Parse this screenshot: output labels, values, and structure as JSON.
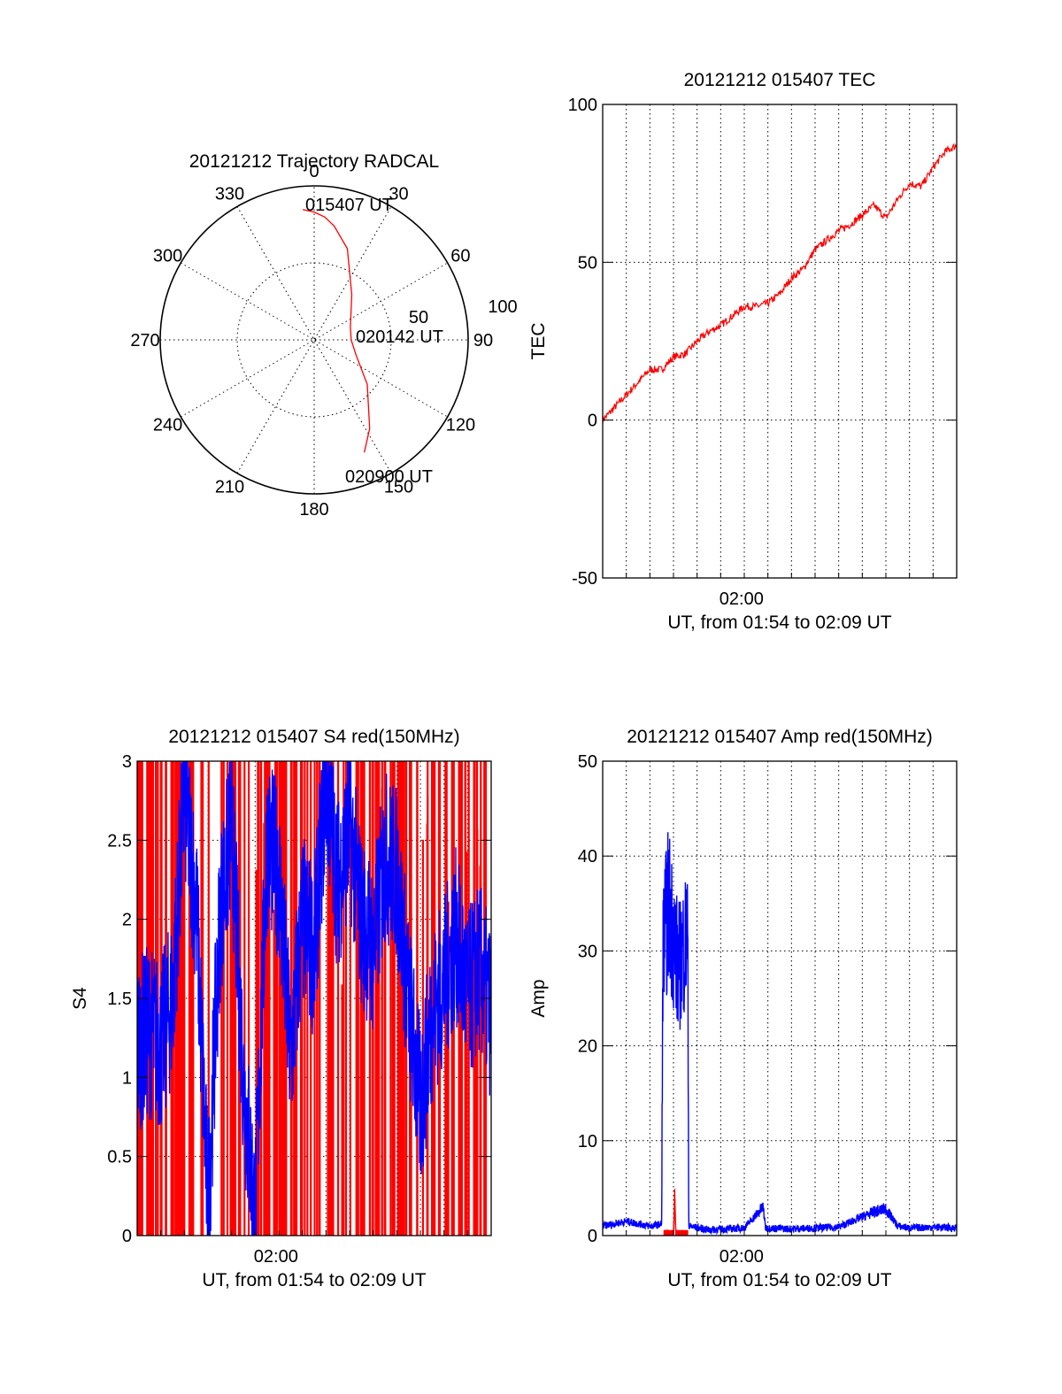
{
  "chart_data": [
    {
      "type": "polar",
      "title": "20121212 Trajectory RADCAL",
      "angle_labels": [
        "0",
        "30",
        "60",
        "90",
        "120",
        "150",
        "180",
        "210",
        "240",
        "270",
        "300",
        "330"
      ],
      "radial_tick_labels": [
        "50",
        "100"
      ],
      "rlim": [
        0,
        100
      ],
      "trajectory": {
        "color": "#ff0000",
        "azimuth_deg": [
          -5,
          0,
          5,
          10,
          20,
          40,
          70,
          90,
          110,
          130,
          148,
          156
        ],
        "radius": [
          85,
          83,
          80,
          75,
          63,
          38,
          25,
          24,
          29,
          45,
          68,
          80
        ]
      },
      "annotations": [
        "015407 UT",
        "020142 UT",
        "020900 UT"
      ],
      "grid": true
    },
    {
      "type": "line",
      "title": "20121212 015407 TEC",
      "ylabel": "TEC",
      "xlabel": "UT, from 01:54 to 02:09 UT",
      "x_tick_labels": [
        "02:00"
      ],
      "x_unit": "minutes since 01:54:07",
      "xlim": [
        0,
        15
      ],
      "ylim": [
        -50,
        100
      ],
      "y_ticks": [
        -50,
        0,
        50,
        100
      ],
      "grid": true,
      "series": [
        {
          "color": "#ff0000",
          "x": [
            0,
            0.5,
            1.0,
            1.5,
            2.0,
            2.5,
            3.0,
            3.5,
            4.0,
            4.5,
            5.0,
            5.5,
            6.0,
            6.5,
            7.0,
            7.5,
            8.0,
            8.5,
            9.0,
            9.5,
            10.0,
            10.5,
            11.0,
            11.5,
            12.0,
            12.5,
            13.0,
            13.5,
            14.0,
            14.5,
            15.0
          ],
          "y": [
            0,
            4,
            8,
            12,
            16,
            16,
            20,
            21,
            25,
            28,
            30,
            33,
            36,
            36,
            37,
            40,
            45,
            48,
            54,
            57,
            60,
            62,
            65,
            68,
            64,
            70,
            75,
            74,
            80,
            85,
            87
          ]
        }
      ]
    },
    {
      "type": "line",
      "title": "20121212 015407 S4 red(150MHz)",
      "ylabel": "S4",
      "xlabel": "UT, from 01:54 to 02:09 UT",
      "x_tick_labels": [
        "02:00"
      ],
      "x_unit": "minutes since 01:54:07",
      "xlim": [
        0,
        15
      ],
      "ylim": [
        0,
        3
      ],
      "y_ticks": [
        0,
        0.5,
        1,
        1.5,
        2,
        2.5,
        3
      ],
      "grid": true,
      "series": [
        {
          "color": "#ff0000",
          "values_span": [
            0,
            3
          ],
          "note_drawn": "dense vertical red lines spanning 0 to 3 throughout"
        },
        {
          "color": "#0000ff",
          "x": [
            0,
            0.5,
            1.0,
            1.5,
            2.0,
            2.5,
            3.0,
            3.5,
            4.0,
            4.5,
            5.0,
            5.5,
            6.0,
            6.5,
            7.0,
            7.5,
            8.0,
            8.5,
            9.0,
            9.5,
            10.0,
            10.5,
            11.0,
            11.5,
            12.0,
            12.5,
            13.0,
            13.5,
            14.0,
            14.5,
            15.0
          ],
          "y": [
            1.2,
            1.3,
            1.2,
            1.5,
            2.8,
            2.1,
            0.15,
            2.0,
            2.6,
            1.0,
            0.1,
            2.5,
            2.3,
            1.1,
            2.0,
            1.8,
            2.9,
            2.2,
            2.6,
            2.0,
            1.8,
            2.4,
            2.3,
            1.5,
            0.8,
            1.4,
            1.6,
            1.9,
            1.5,
            1.7,
            1.4
          ]
        }
      ]
    },
    {
      "type": "line",
      "title": "20121212 015407 Amp red(150MHz)",
      "ylabel": "Amp",
      "xlabel": "UT, from 01:54 to 02:09 UT",
      "x_tick_labels": [
        "02:00"
      ],
      "x_unit": "minutes since 01:54:07",
      "xlim": [
        0,
        15
      ],
      "ylim": [
        0,
        50
      ],
      "y_ticks": [
        0,
        10,
        20,
        30,
        40,
        50
      ],
      "grid": true,
      "series": [
        {
          "color": "#0000ff",
          "x": [
            0,
            1.0,
            2.0,
            2.5,
            2.55,
            2.8,
            3.2,
            3.6,
            3.65,
            4.5,
            6.0,
            6.8,
            6.9,
            8.0,
            10.0,
            11.5,
            12.0,
            12.5,
            13.0,
            14.0,
            15.0
          ],
          "y": [
            1,
            1.5,
            1.0,
            1.2,
            30,
            35,
            28,
            32,
            1.0,
            0.6,
            0.8,
            3.0,
            0.8,
            0.7,
            0.9,
            2.5,
            2.8,
            1.0,
            0.8,
            0.9,
            0.8
          ]
        },
        {
          "color": "#ff0000",
          "x": [
            2.6,
            3.0,
            3.05,
            3.1,
            3.6
          ],
          "y": [
            0.2,
            0.2,
            4.0,
            0.2,
            0.2
          ]
        }
      ]
    }
  ]
}
